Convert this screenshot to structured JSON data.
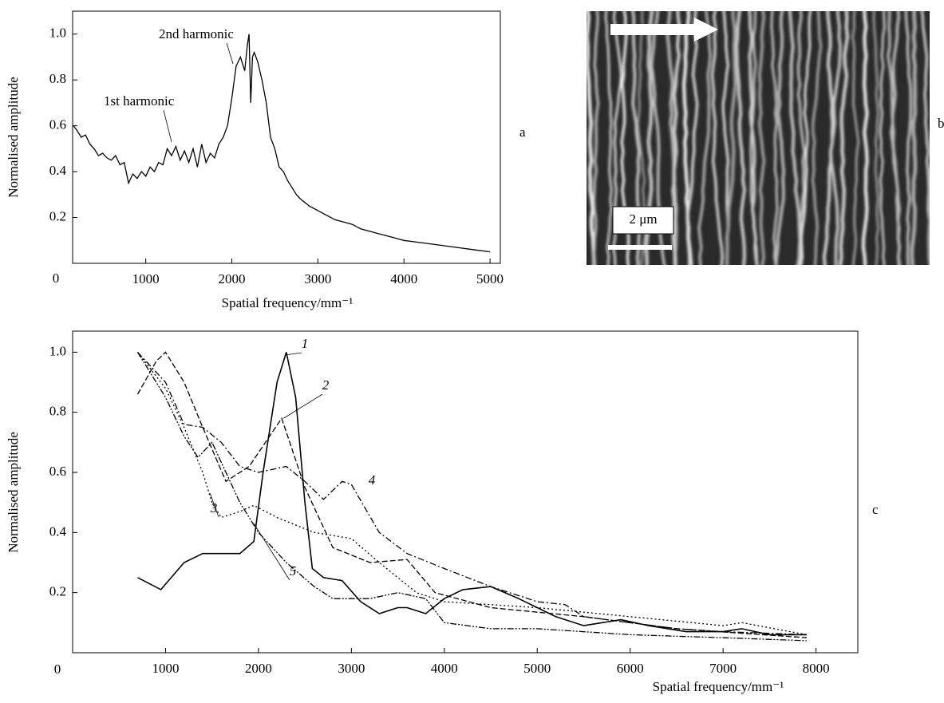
{
  "chart_data": [
    {
      "type": "line",
      "panel_label": "a",
      "origin_label": "0",
      "x_label": "Spatial frequency/mm⁻¹",
      "y_label": "Normalised amplitude",
      "xlim": [
        150,
        5120
      ],
      "ylim": [
        0,
        1.1
      ],
      "xticks": [
        1000,
        2000,
        3000,
        4000,
        5000
      ],
      "yticks": [
        0.2,
        0.4,
        0.6,
        0.8,
        {
          "value": 1,
          "label": "1.0"
        }
      ],
      "annotations": [
        "2nd harmonic",
        "1st harmonic"
      ],
      "series": [
        {
          "color": "#000",
          "x": [
            160,
            200,
            250,
            300,
            350,
            400,
            450,
            500,
            550,
            600,
            650,
            700,
            750,
            800,
            850,
            900,
            950,
            1000,
            1050,
            1100,
            1150,
            1200,
            1250,
            1300,
            1350,
            1400,
            1450,
            1500,
            1550,
            1600,
            1650,
            1700,
            1750,
            1800,
            1850,
            1900,
            1950,
            2000,
            2050,
            2100,
            2150,
            2180,
            2200,
            2220,
            2240,
            2260,
            2300,
            2350,
            2400,
            2450,
            2500,
            2550,
            2600,
            2650,
            2700,
            2750,
            2800,
            2900,
            3000,
            3100,
            3200,
            3300,
            3400,
            3500,
            3600,
            3700,
            3800,
            3900,
            4000,
            4200,
            4400,
            4600,
            4800,
            5000
          ],
          "values": [
            0.6,
            0.58,
            0.55,
            0.56,
            0.52,
            0.5,
            0.47,
            0.48,
            0.46,
            0.45,
            0.47,
            0.43,
            0.44,
            0.35,
            0.39,
            0.37,
            0.4,
            0.38,
            0.42,
            0.4,
            0.44,
            0.43,
            0.5,
            0.47,
            0.51,
            0.45,
            0.49,
            0.44,
            0.5,
            0.42,
            0.52,
            0.44,
            0.48,
            0.46,
            0.52,
            0.55,
            0.6,
            0.72,
            0.86,
            0.9,
            0.84,
            0.95,
            1.0,
            0.7,
            0.9,
            0.92,
            0.88,
            0.8,
            0.7,
            0.55,
            0.5,
            0.42,
            0.4,
            0.36,
            0.33,
            0.3,
            0.28,
            0.25,
            0.23,
            0.21,
            0.19,
            0.18,
            0.17,
            0.15,
            0.14,
            0.13,
            0.12,
            0.11,
            0.1,
            0.09,
            0.08,
            0.07,
            0.06,
            0.05
          ]
        }
      ]
    },
    {
      "type": "line",
      "panel_label": "c",
      "origin_label": "0",
      "x_label": "Spatial frequency/mm⁻¹",
      "y_label": "Normalised amplitude",
      "xlim": [
        0,
        8450
      ],
      "ylim": [
        0,
        1.07
      ],
      "xticks": [
        1000,
        2000,
        3000,
        4000,
        5000,
        6000,
        7000,
        8000
      ],
      "yticks": [
        0.2,
        0.4,
        0.6,
        0.8,
        {
          "value": 1,
          "label": "1.0"
        }
      ],
      "series": [
        {
          "name": "1",
          "color": "#000",
          "dash": "none",
          "x": [
            700,
            950,
            1200,
            1400,
            1800,
            1950,
            2050,
            2200,
            2300,
            2400,
            2500,
            2580,
            2700,
            2900,
            3100,
            3300,
            3500,
            3600,
            3800,
            4000,
            4200,
            4500,
            4800,
            5200,
            5500,
            5700,
            5900,
            6200,
            6600,
            7000,
            7200,
            7500,
            7900
          ],
          "values": [
            0.25,
            0.21,
            0.3,
            0.33,
            0.33,
            0.37,
            0.6,
            0.9,
            1.0,
            0.85,
            0.5,
            0.28,
            0.25,
            0.24,
            0.17,
            0.13,
            0.15,
            0.15,
            0.13,
            0.18,
            0.21,
            0.22,
            0.18,
            0.12,
            0.09,
            0.1,
            0.11,
            0.09,
            0.07,
            0.07,
            0.08,
            0.06,
            0.06
          ]
        },
        {
          "name": "2",
          "color": "#000",
          "dash": "7,3",
          "x": [
            700,
            900,
            1000,
            1200,
            1400,
            1650,
            1900,
            2250,
            2500,
            2800,
            3200,
            3600,
            3900,
            4500,
            5500,
            6500,
            7900
          ],
          "values": [
            0.86,
            0.97,
            1.0,
            0.9,
            0.75,
            0.57,
            0.62,
            0.78,
            0.55,
            0.35,
            0.3,
            0.31,
            0.2,
            0.15,
            0.12,
            0.08,
            0.05
          ]
        },
        {
          "name": "3",
          "color": "#000",
          "dash": "2,3",
          "x": [
            700,
            1000,
            1200,
            1400,
            1500,
            1600,
            1800,
            1950,
            2200,
            2600,
            3000,
            3300,
            3700,
            4000,
            5000,
            6000,
            7000,
            7200,
            7900
          ],
          "values": [
            1.0,
            0.88,
            0.75,
            0.6,
            0.5,
            0.45,
            0.47,
            0.49,
            0.45,
            0.4,
            0.38,
            0.3,
            0.2,
            0.17,
            0.15,
            0.12,
            0.09,
            0.1,
            0.06
          ]
        },
        {
          "name": "4",
          "color": "#000",
          "dash": "8,3,2,3",
          "x": [
            700,
            1000,
            1200,
            1400,
            1600,
            1800,
            2000,
            2300,
            2500,
            2700,
            2900,
            3000,
            3300,
            3600,
            4000,
            4500,
            5000,
            5300,
            5500,
            6000,
            6500,
            7000,
            7900
          ],
          "values": [
            1.0,
            0.9,
            0.76,
            0.75,
            0.7,
            0.62,
            0.6,
            0.62,
            0.57,
            0.51,
            0.57,
            0.56,
            0.4,
            0.33,
            0.28,
            0.22,
            0.17,
            0.16,
            0.12,
            0.1,
            0.08,
            0.07,
            0.06
          ]
        },
        {
          "name": "5",
          "color": "#000",
          "dash": "8,2,2,2,2,2",
          "x": [
            700,
            1000,
            1200,
            1350,
            1500,
            1650,
            1800,
            2000,
            2300,
            2600,
            2800,
            3200,
            3500,
            3800,
            4000,
            4500,
            5000,
            6000,
            7000,
            7900
          ],
          "values": [
            1.0,
            0.85,
            0.72,
            0.65,
            0.7,
            0.6,
            0.5,
            0.4,
            0.3,
            0.22,
            0.18,
            0.18,
            0.2,
            0.18,
            0.1,
            0.08,
            0.08,
            0.06,
            0.05,
            0.04
          ]
        }
      ]
    }
  ],
  "image": {
    "panel_label": "b",
    "scale_label": "2 μm"
  }
}
